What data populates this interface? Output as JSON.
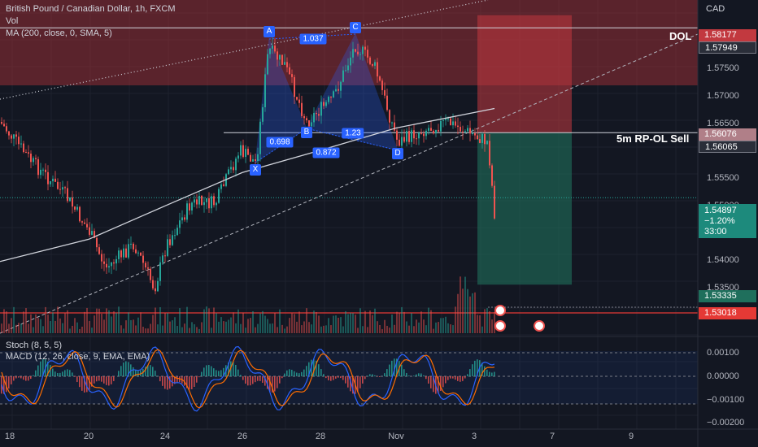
{
  "header": {
    "title": "British Pound / Canadian Dollar, 1h, FXCM",
    "vol": "Vol",
    "ma": "MA (200, close, 0, SMA, 5)",
    "currency": "CAD"
  },
  "price_axis": {
    "ticks": [
      "1.57500",
      "1.57000",
      "1.56500",
      "1.55500",
      "1.55000",
      "1.54000",
      "1.53500"
    ],
    "tags": {
      "zone_top": "1.58177",
      "dol": "1.57949",
      "sell_entry": "1.56076",
      "sell_alt": "1.56065",
      "current": "1.54897",
      "change": "−1.20%",
      "countdown": "33:00",
      "target": "1.53335",
      "red_line": "1.53018"
    }
  },
  "annotations": {
    "dol": "DOL",
    "rp_sell": "5m RP-OL Sell",
    "pattern_points": [
      "X",
      "A",
      "B",
      "C",
      "D"
    ],
    "pattern_ratios": [
      "1.037",
      "0.698",
      "0.872",
      "1.23"
    ]
  },
  "time_axis": [
    "18",
    "20",
    "24",
    "26",
    "28",
    "Nov",
    "3",
    "7",
    "9"
  ],
  "oscillators": {
    "stoch": "Stoch (8, 5, 5)",
    "macd": "MACD (12, 26, close, 9, EMA, EMA)",
    "ticks": [
      "0.00100",
      "0.00000",
      "−0.00100",
      "−0.00200"
    ]
  },
  "colors": {
    "up": "#26a69a",
    "down": "#ef5350",
    "bg": "#131722",
    "pattern": "#2962ff",
    "ma": "#d1d4dc",
    "stop_zone": "#b2323a",
    "profit_zone": "#1f6f5c"
  },
  "chart_data": {
    "type": "candlestick",
    "title": "British Pound / Canadian Dollar, 1h, FXCM",
    "y_axis_range": [
      1.529,
      1.5845
    ],
    "series": [
      {
        "name": "MA (200, close, 0, SMA, 5)",
        "x": [
          "18",
          "20",
          "24",
          "26",
          "28",
          "Nov",
          "3"
        ],
        "values": [
          1.5375,
          1.5415,
          1.5475,
          1.5535,
          1.5575,
          1.5615,
          1.565
        ]
      }
    ],
    "pattern": {
      "X": 1.559,
      "A": 1.5808,
      "B": 1.565,
      "C": 1.5815,
      "D": 1.561,
      "ratios": {
        "AB": 0.698,
        "XA_C": 1.037,
        "BC": 0.872,
        "CD": 1.23
      }
    },
    "levels": {
      "DOL": 1.57949,
      "zone_top": 1.58177,
      "rp_ol_sell": 1.56065,
      "target": 1.53335,
      "red_line": 1.53018,
      "current": 1.54897
    }
  }
}
